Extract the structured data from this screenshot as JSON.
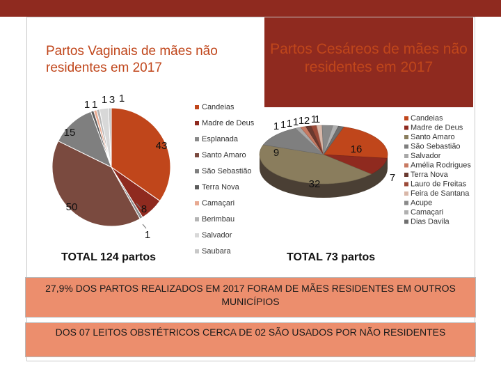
{
  "titles": {
    "left": "Partos Vaginais de mães não residentes em 2017",
    "right": "Partos Cesáreos de mães não residentes em 2017"
  },
  "totals": {
    "left": "TOTAL 124 partos",
    "right": "TOTAL 73 partos"
  },
  "notes": {
    "first": "27,9% DOS PARTOS REALIZADOS EM 2017 FORAM DE MÃES RESIDENTES EM OUTROS MUNICÍPIOS",
    "second": "DOS 07 LEITOS OBSTÉTRICOS CERCA DE 02 SÃO USADOS POR NÃO RESIDENTES"
  },
  "colors": {
    "banner": "#8f2a1f",
    "title_text": "#c0461b",
    "note_fill": "#ec8e6d"
  },
  "chart_data": [
    {
      "type": "pie",
      "title": "Partos Vaginais de mães não residentes em 2017",
      "labels": [
        "Candeias",
        "Madre de Deus",
        "Esplanada",
        "Santo Amaro",
        "São Sebastião",
        "Terra Nova",
        "Camaçari",
        "Berimbau",
        "Salvador",
        "Saubara"
      ],
      "values": [
        43,
        8,
        1,
        50,
        15,
        1,
        1,
        1,
        3,
        1
      ],
      "colors": [
        "#c0461b",
        "#8f2a1f",
        "#8a8a8a",
        "#7a4a3f",
        "#7f7f7f",
        "#5d5d5d",
        "#e8aa92",
        "#b5b5b5",
        "#d8d8d8",
        "#c8c8c8"
      ],
      "legend": "right",
      "total_label": "TOTAL 124 partos"
    },
    {
      "type": "pie",
      "title": "Partos Cesáreos de mães não residentes em 2017",
      "labels": [
        "Candeias",
        "Madre de Deus",
        "Santo Amaro",
        "São Sebastião",
        "Salvador",
        "Amélia Rodrigues",
        "Terra Nova",
        "Lauro de Freitas",
        "Feira de Santana",
        "Acupe",
        "Camaçari",
        "Dias Davila"
      ],
      "values": [
        16,
        7,
        32,
        9,
        1,
        1,
        1,
        1,
        1,
        2,
        1,
        1
      ],
      "colors": [
        "#c0461b",
        "#8f2a1f",
        "#8a7d5d",
        "#7f7f7f",
        "#a8a8a8",
        "#c87a62",
        "#6a3a30",
        "#9b4a38",
        "#d9b7a8",
        "#8a8a8a",
        "#b0b0b0",
        "#6f6f6f"
      ],
      "legend": "right",
      "total_label": "TOTAL 73 partos"
    }
  ]
}
